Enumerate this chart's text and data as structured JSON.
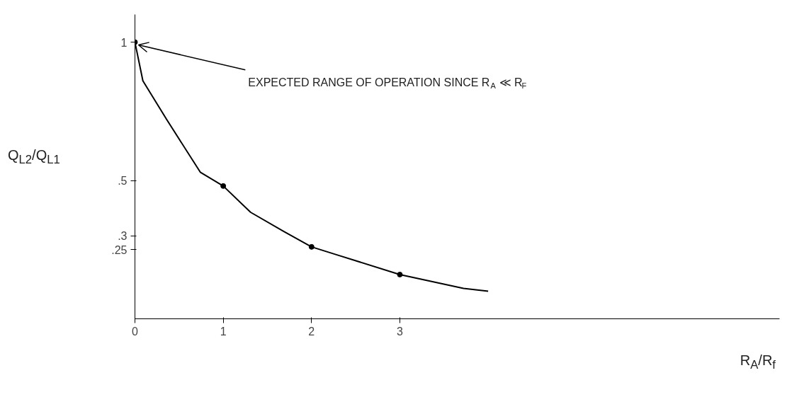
{
  "chart_data": {
    "type": "line",
    "xlabel": "R$_{A}$/R$_{f}$",
    "ylabel": "Q$_{L2}$/Q$_{L1}$",
    "xlim": [
      0,
      7.3
    ],
    "ylim": [
      0,
      1.1
    ],
    "xticks": [
      0,
      1,
      2,
      3
    ],
    "yticks": [
      {
        "value": 0.25,
        "label": ".25"
      },
      {
        "value": 0.3,
        "label": ".3"
      },
      {
        "value": 0.5,
        "label": ".5"
      },
      1
    ],
    "grid": false,
    "series": [
      {
        "color": "#000000",
        "x": [
          0,
          0.09,
          0.36,
          0.74,
          1,
          1.31,
          1.69,
          2,
          2.3,
          3,
          3.72,
          4.0
        ],
        "values": [
          1,
          0.86,
          0.72,
          0.53,
          0.48,
          0.385,
          0.315,
          0.26,
          0.23,
          0.16,
          0.11,
          0.1
        ]
      },
      {
        "type": "scatter",
        "color": "#000000",
        "x": [
          0,
          1,
          2,
          3
        ],
        "values": [
          1,
          0.48,
          0.26,
          0.16
        ],
        "marker": "circle"
      }
    ],
    "annotations": [
      {
        "text": "EXPECTED RANGE OF OPERATION SINCE R$_{A}$ ≪ R$_{F}$",
        "x": 0,
        "y": 1
      }
    ]
  }
}
